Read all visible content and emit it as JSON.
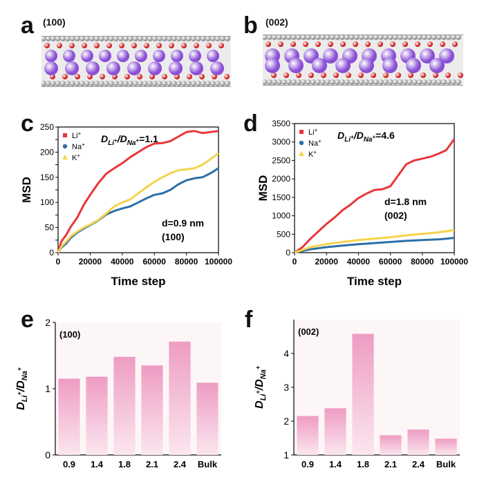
{
  "panels": {
    "a": {
      "letter": "a",
      "label": "(100)"
    },
    "b": {
      "letter": "b",
      "label": "(002)"
    },
    "c": {
      "letter": "c"
    },
    "d": {
      "letter": "d"
    },
    "e": {
      "letter": "e"
    },
    "f": {
      "letter": "f"
    }
  },
  "colors": {
    "li": "#e8353b",
    "na": "#2a6fa8",
    "k": "#f5d34a",
    "bar_top": "#ee9cc3",
    "bar_bottom": "#fbe6ef",
    "chart_bg": "#fdf6f6",
    "atom_purple": "#8a4fd6",
    "atom_red": "#d02020",
    "atom_gray": "#9a9a9a"
  },
  "chart_data": [
    {
      "id": "c",
      "type": "line",
      "xlabel": "Time step",
      "ylabel": "MSD",
      "xlim": [
        0,
        100000
      ],
      "ylim": [
        0,
        250
      ],
      "xticks": [
        0,
        20000,
        40000,
        60000,
        80000,
        100000
      ],
      "yticks": [
        0,
        25,
        50,
        75,
        100,
        125,
        150,
        175,
        200,
        225,
        250
      ],
      "ytick_labels": [
        "0",
        "",
        "50",
        "",
        "100",
        "",
        "150",
        "",
        "200",
        "",
        "250"
      ],
      "ratio_label": "DLi+/DNa+=1.1",
      "annotation_lines": [
        "d=0.9 nm",
        "(100)"
      ],
      "legend": [
        "Li",
        "Na",
        "K"
      ],
      "legend_placement": "top-left",
      "series": [
        {
          "name": "Li",
          "x": [
            0,
            2000,
            5000,
            8000,
            12000,
            16000,
            20000,
            25000,
            30000,
            35000,
            40000,
            45000,
            50000,
            55000,
            60000,
            65000,
            70000,
            75000,
            80000,
            85000,
            90000,
            95000,
            100000
          ],
          "y": [
            0,
            22,
            35,
            52,
            70,
            95,
            115,
            138,
            157,
            168,
            178,
            190,
            200,
            210,
            217,
            218,
            222,
            231,
            240,
            242,
            238,
            240,
            242
          ]
        },
        {
          "name": "Na",
          "x": [
            0,
            2000,
            5000,
            8000,
            12000,
            16000,
            20000,
            25000,
            30000,
            35000,
            40000,
            45000,
            50000,
            55000,
            60000,
            65000,
            70000,
            75000,
            80000,
            85000,
            90000,
            95000,
            100000
          ],
          "y": [
            0,
            10,
            18,
            30,
            40,
            48,
            55,
            64,
            76,
            83,
            88,
            92,
            100,
            108,
            115,
            118,
            125,
            136,
            144,
            148,
            150,
            158,
            168
          ]
        },
        {
          "name": "K",
          "x": [
            0,
            2000,
            5000,
            8000,
            12000,
            16000,
            20000,
            25000,
            30000,
            35000,
            40000,
            45000,
            50000,
            55000,
            60000,
            65000,
            70000,
            75000,
            80000,
            85000,
            90000,
            95000,
            100000
          ],
          "y": [
            0,
            12,
            22,
            33,
            42,
            50,
            56,
            65,
            78,
            92,
            100,
            106,
            118,
            130,
            141,
            150,
            158,
            164,
            166,
            168,
            175,
            186,
            198
          ]
        }
      ]
    },
    {
      "id": "d",
      "type": "line",
      "xlabel": "Time step",
      "ylabel": "MSD",
      "xlim": [
        0,
        100000
      ],
      "ylim": [
        0,
        3500
      ],
      "xticks": [
        0,
        20000,
        40000,
        60000,
        80000,
        100000
      ],
      "yticks": [
        0,
        500,
        1000,
        1500,
        2000,
        2500,
        3000,
        3500
      ],
      "ytick_labels": [
        "0",
        "500",
        "1000",
        "1500",
        "2000",
        "2500",
        "3000",
        "3500"
      ],
      "ratio_label": "DLi+/DNa+=4.6",
      "annotation_lines": [
        "d=1.8 nm",
        "(002)"
      ],
      "legend": [
        "Li",
        "Na",
        "K"
      ],
      "legend_placement": "top-left",
      "series": [
        {
          "name": "Li",
          "x": [
            0,
            5000,
            10000,
            15000,
            20000,
            25000,
            30000,
            35000,
            40000,
            45000,
            50000,
            55000,
            60000,
            65000,
            70000,
            75000,
            80000,
            85000,
            90000,
            95000,
            100000
          ],
          "y": [
            0,
            150,
            380,
            580,
            780,
            950,
            1150,
            1300,
            1480,
            1600,
            1700,
            1720,
            1800,
            2100,
            2400,
            2500,
            2550,
            2600,
            2680,
            2780,
            3080
          ]
        },
        {
          "name": "Na",
          "x": [
            0,
            10000,
            20000,
            30000,
            40000,
            50000,
            60000,
            70000,
            80000,
            90000,
            100000
          ],
          "y": [
            0,
            90,
            150,
            190,
            230,
            260,
            290,
            320,
            340,
            360,
            400
          ]
        },
        {
          "name": "K",
          "x": [
            0,
            10000,
            20000,
            30000,
            40000,
            50000,
            60000,
            70000,
            80000,
            90000,
            100000
          ],
          "y": [
            0,
            150,
            230,
            290,
            340,
            380,
            420,
            470,
            510,
            550,
            610
          ]
        }
      ]
    },
    {
      "id": "e",
      "type": "bar",
      "ylabel": "DLi+/DNa+",
      "categories": [
        "0.9",
        "1.4",
        "1.8",
        "2.1",
        "2.4",
        "Bulk"
      ],
      "values": [
        1.15,
        1.18,
        1.48,
        1.35,
        1.71,
        1.09
      ],
      "ylim": [
        0,
        2
      ],
      "yticks": [
        0,
        1,
        2
      ],
      "label": "(100)"
    },
    {
      "id": "f",
      "type": "bar",
      "ylabel": "DLi+/DNa+",
      "categories": [
        "0.9",
        "1.4",
        "1.8",
        "2.1",
        "2.4",
        "Bulk"
      ],
      "values": [
        2.15,
        2.38,
        4.58,
        1.58,
        1.75,
        1.48
      ],
      "ylim": [
        1,
        5
      ],
      "yticks": [
        1,
        2,
        3,
        4
      ],
      "label": "(002)"
    }
  ]
}
